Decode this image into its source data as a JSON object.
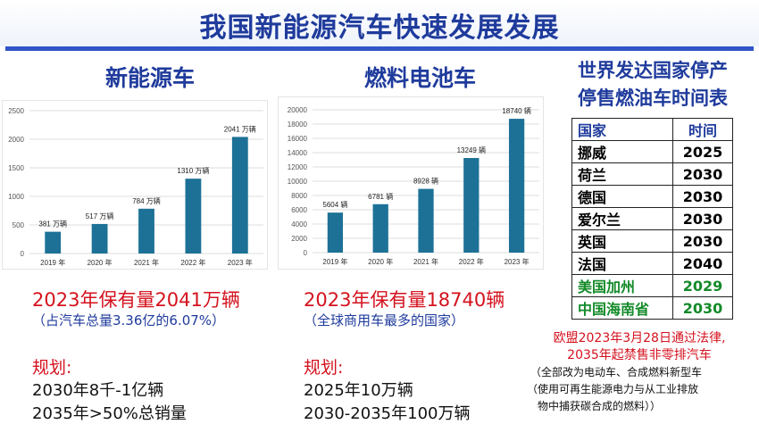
{
  "title": "我国新能源汽车快速发展发展",
  "nev": {
    "heading": "新能源车",
    "stat": "2023年保有量2041万辆",
    "note": "（占汽车总量3.36亿的6.07%）",
    "plan_title": "规划:",
    "plans": [
      "2030年8千-1亿辆",
      "2035年>50%总销量"
    ]
  },
  "fcv": {
    "heading": "燃料电池车",
    "stat": "2023年保有量18740辆",
    "note": "（全球商用车最多的国家）",
    "plan_title": "规划:",
    "plans": [
      "2025年10万辆",
      "2030-2035年100万辆"
    ]
  },
  "world": {
    "title_lines": [
      "世界发达国家停产",
      "停售燃油车时间表"
    ],
    "table_header": [
      "国家",
      "时间"
    ],
    "rows": [
      {
        "country": "挪威",
        "year": "2025",
        "highlight": false
      },
      {
        "country": "荷兰",
        "year": "2030",
        "highlight": false
      },
      {
        "country": "德国",
        "year": "2030",
        "highlight": false
      },
      {
        "country": "爱尔兰",
        "year": "2030",
        "highlight": false
      },
      {
        "country": "英国",
        "year": "2030",
        "highlight": false
      },
      {
        "country": "法国",
        "year": "2040",
        "highlight": false
      },
      {
        "country": "美国加州",
        "year": "2029",
        "highlight": true
      },
      {
        "country": "中国海南省",
        "year": "2030",
        "highlight": true
      }
    ],
    "eu_lines": [
      "欧盟2023年3月28日通过法律,",
      "2035年起禁售非零排汽车"
    ],
    "eu_note_lines": [
      "（全部改为电动车、合成燃料新型车",
      "（使用可再生能源电力与从工业排放",
      "物中捕获碳合成的燃料））"
    ]
  },
  "colors": {
    "bar": "#1d7196",
    "title": "#1f3b9c",
    "red": "#d4121e",
    "green": "#138a29"
  },
  "chart_data": [
    {
      "type": "bar",
      "categories": [
        "2019 年",
        "2020 年",
        "2021 年",
        "2022 年",
        "2023 年"
      ],
      "values": [
        381,
        517,
        784,
        1310,
        2041
      ],
      "data_labels": [
        "381 万辆",
        "517 万辆",
        "784 万辆",
        "1310 万辆",
        "2041 万辆"
      ],
      "yticks": [
        0,
        500,
        1000,
        1500,
        2000,
        2500
      ],
      "ylim": [
        0,
        2500
      ],
      "grid": true
    },
    {
      "type": "bar",
      "categories": [
        "2019 年",
        "2020 年",
        "2021 年",
        "2022 年",
        "2023 年"
      ],
      "values": [
        5604,
        6781,
        8928,
        13249,
        18740
      ],
      "data_labels": [
        "5604 辆",
        "6781 辆",
        "8928 辆",
        "13249 辆",
        "18740 辆"
      ],
      "yticks": [
        0,
        2000,
        4000,
        6000,
        8000,
        10000,
        12000,
        14000,
        16000,
        18000,
        20000
      ],
      "ylim": [
        0,
        20000
      ],
      "grid": true
    }
  ]
}
